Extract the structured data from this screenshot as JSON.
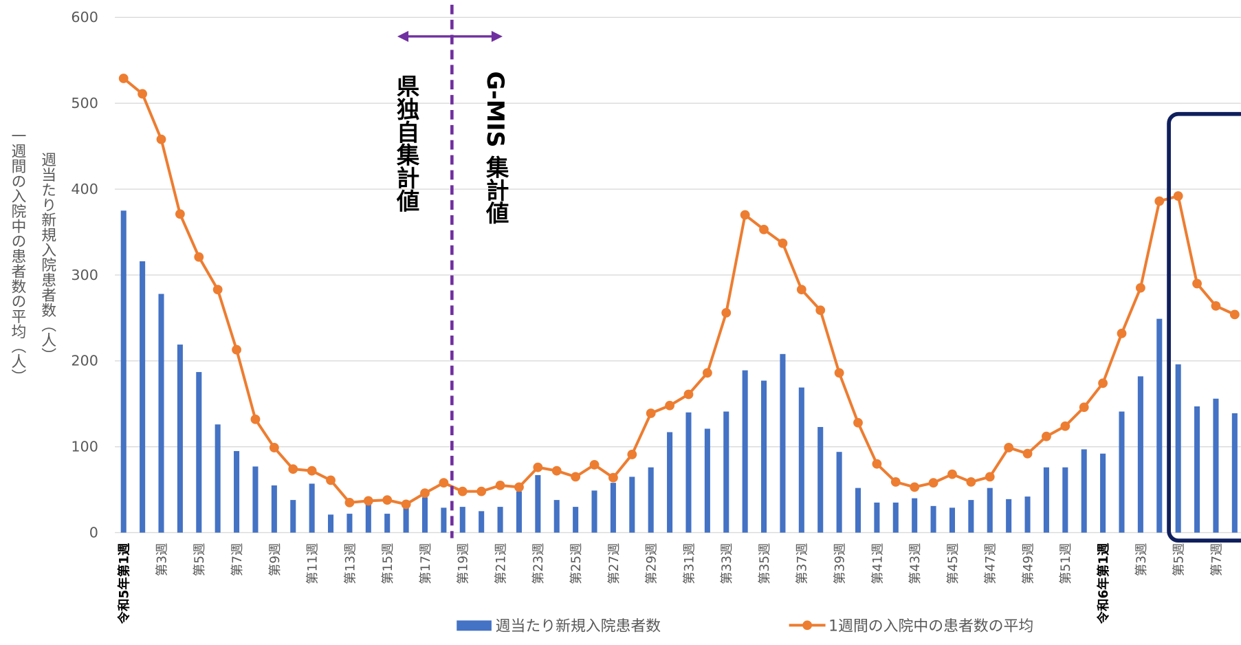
{
  "chart_data": {
    "type": "bar_line",
    "categories": [
      "令和5年第1週",
      null,
      "第3週",
      null,
      "第5週",
      null,
      "第7週",
      null,
      "第9週",
      null,
      "第11週",
      null,
      "第13週",
      null,
      "第15週",
      null,
      "第17週",
      null,
      "第19週",
      null,
      "第21週",
      null,
      "第23週",
      null,
      "第25週",
      null,
      "第27週",
      null,
      "第29週",
      null,
      "第31週",
      null,
      "第33週",
      null,
      "第35週",
      null,
      "第37週",
      null,
      "第39週",
      null,
      "第41週",
      null,
      "第43週",
      null,
      "第45週",
      null,
      "第47週",
      null,
      "第49週",
      null,
      "第51週",
      null,
      "令和6年第1週",
      null,
      "第3週",
      null,
      "第5週",
      null,
      "第7週",
      null
    ],
    "series": [
      {
        "name": "週当たり新規入院患者数",
        "type": "bar",
        "color": "#4472c4",
        "values": [
          375,
          316,
          278,
          219,
          187,
          126,
          95,
          77,
          55,
          38,
          57,
          21,
          22,
          33,
          22,
          30,
          41,
          29,
          30,
          25,
          30,
          48,
          67,
          38,
          30,
          49,
          58,
          65,
          76,
          117,
          140,
          121,
          141,
          189,
          177,
          208,
          169,
          123,
          94,
          52,
          35,
          35,
          40,
          31,
          29,
          38,
          52,
          39,
          42,
          76,
          76,
          97,
          92,
          141,
          182,
          249,
          196,
          147,
          156,
          139
        ]
      },
      {
        "name": "1週間の入院中の患者数の平均",
        "type": "line",
        "color": "#ed7d31",
        "values": [
          529,
          511,
          458,
          371,
          321,
          283,
          213,
          132,
          99,
          74,
          72,
          61,
          35,
          37,
          38,
          33,
          46,
          58,
          48,
          48,
          55,
          53,
          76,
          72,
          65,
          79,
          64,
          91,
          139,
          148,
          161,
          186,
          256,
          370,
          353,
          337,
          283,
          259,
          186,
          128,
          80,
          59,
          53,
          58,
          68,
          59,
          65,
          99,
          92,
          112,
          124,
          146,
          174,
          232,
          285,
          386,
          392,
          290,
          264,
          254
        ]
      }
    ],
    "y_axis_labels": [
      "一週間の入院中の患者数の平均（人）",
      "週当たり新規入院患者数（人）"
    ],
    "annotations": [
      "県独自集計値",
      "G-MIS 集計値"
    ],
    "ylim": [
      0,
      600
    ],
    "yticks": [
      0,
      100,
      200,
      300,
      400,
      500,
      600
    ],
    "grid": true
  }
}
